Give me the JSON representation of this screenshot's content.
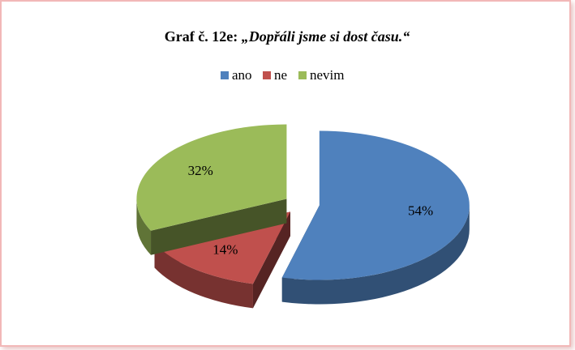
{
  "chart_data": {
    "type": "pie3d",
    "title": "Graf č. 12e:",
    "title_quote": "„Dopřáli jsme si dost času.“",
    "categories": [
      "ano",
      "ne",
      "nevim"
    ],
    "values": [
      54,
      14,
      32
    ],
    "value_labels": [
      "54%",
      "14%",
      "32%"
    ],
    "colors": [
      "#4f81bd",
      "#c0504d",
      "#9bbb59"
    ],
    "legend": "top"
  }
}
